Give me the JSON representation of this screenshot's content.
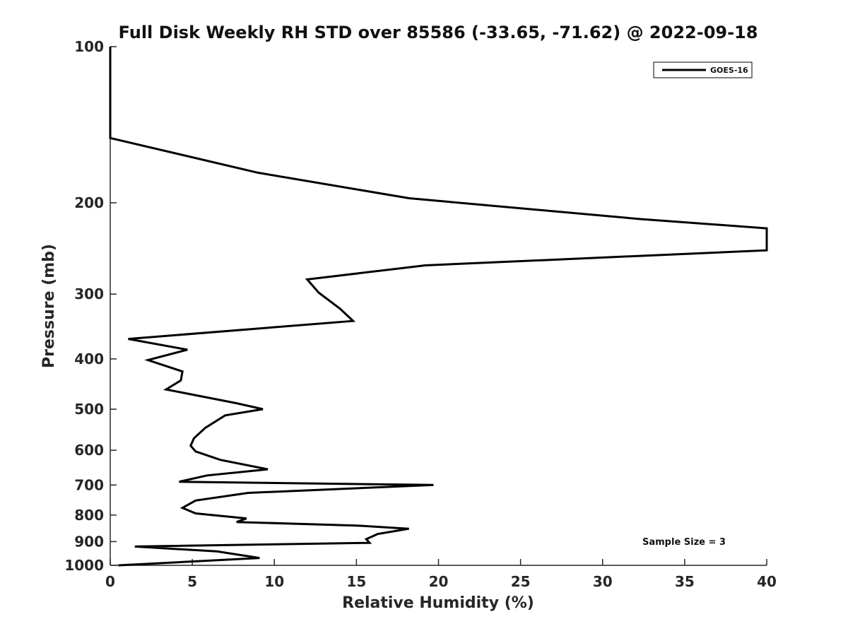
{
  "chart_data": {
    "type": "line",
    "title": "Full Disk Weekly RH STD over 85586 (-33.65, -71.62) @ 2022-09-18",
    "xlabel": "Relative Humidity (%)",
    "ylabel": "Pressure (mb)",
    "xlim": [
      0,
      40
    ],
    "ylim": [
      100,
      1000
    ],
    "yscale": "log",
    "yreversed": true,
    "x_ticks": [
      "0",
      "5",
      "10",
      "15",
      "20",
      "25",
      "30",
      "35",
      "40"
    ],
    "y_ticks": [
      "100",
      "200",
      "300",
      "400",
      "500",
      "600",
      "700",
      "800",
      "900",
      "1000"
    ],
    "grid": false,
    "legend_position": "top-right",
    "annotation": "Sample Size = 3",
    "series": [
      {
        "name": "GOES-16",
        "color": "#000000",
        "points": [
          [
            0,
            100
          ],
          [
            0,
            150
          ],
          [
            9,
            175
          ],
          [
            18.2,
            196
          ],
          [
            32.3,
            215
          ],
          [
            40,
            224
          ],
          [
            40,
            247
          ],
          [
            19.2,
            264
          ],
          [
            12,
            281
          ],
          [
            12.7,
            298
          ],
          [
            14,
            320
          ],
          [
            14.8,
            338
          ],
          [
            1.1,
            366
          ],
          [
            4.7,
            384
          ],
          [
            2.3,
            402
          ],
          [
            4.4,
            423
          ],
          [
            4.3,
            440
          ],
          [
            3.4,
            458
          ],
          [
            7.7,
            487
          ],
          [
            9.3,
            500
          ],
          [
            7,
            514
          ],
          [
            5.8,
            543
          ],
          [
            5.1,
            569
          ],
          [
            4.9,
            588
          ],
          [
            5.2,
            603
          ],
          [
            6.7,
            626
          ],
          [
            9.6,
            653
          ],
          [
            5.9,
            671
          ],
          [
            4.2,
            690
          ],
          [
            19.7,
            700
          ],
          [
            8.4,
            725
          ],
          [
            5.2,
            750
          ],
          [
            4.4,
            775
          ],
          [
            5.2,
            794
          ],
          [
            8.3,
            812
          ],
          [
            7.7,
            825
          ],
          [
            15,
            838
          ],
          [
            18.2,
            850
          ],
          [
            16.3,
            870
          ],
          [
            15.6,
            890
          ],
          [
            15.8,
            905
          ],
          [
            1.5,
            920
          ],
          [
            6.5,
            940
          ],
          [
            9.1,
            968
          ],
          [
            0.5,
            1000
          ]
        ]
      }
    ]
  }
}
